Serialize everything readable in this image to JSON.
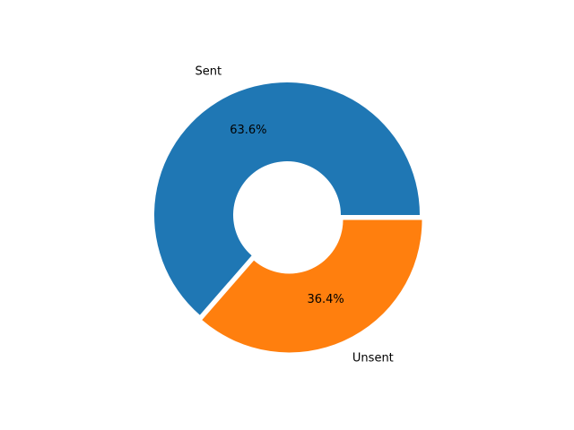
{
  "chart_data": {
    "type": "pie",
    "title": "",
    "donut": true,
    "categories": [
      "Sent",
      "Unsent"
    ],
    "values": [
      63.6,
      36.4
    ],
    "percent_labels": [
      "63.6%",
      "36.4%"
    ],
    "colors": [
      "#1f77b4",
      "#ff7f0e"
    ],
    "legend": "none",
    "grid": false
  }
}
